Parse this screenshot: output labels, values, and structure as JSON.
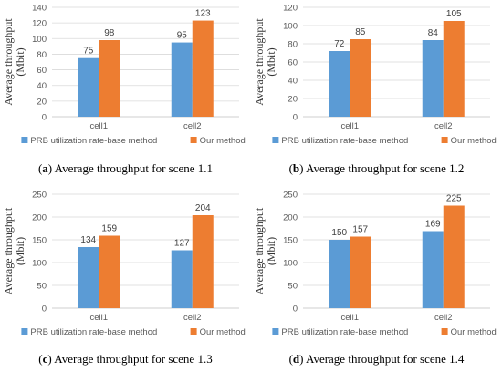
{
  "chart_data": [
    {
      "type": "bar",
      "panel_letter": "a",
      "caption": "Average throughput for scene 1.1",
      "ylabel": [
        "Average throughput",
        "(Mbit)"
      ],
      "categories": [
        "cell1",
        "cell2"
      ],
      "ylim": [
        0,
        140
      ],
      "yticks": [
        0,
        20,
        40,
        60,
        80,
        100,
        120,
        140
      ],
      "grid": true,
      "legend_position": "bottom",
      "series": [
        {
          "name": "PRB utilization rate-base method",
          "color": "#5B9BD5",
          "values": [
            75,
            95
          ]
        },
        {
          "name": "Our method",
          "color": "#ED7D31",
          "values": [
            98,
            123
          ]
        }
      ]
    },
    {
      "type": "bar",
      "panel_letter": "b",
      "caption": "Average throughput for scene 1.2",
      "ylabel": [
        "Average throughput",
        "(Mbit)"
      ],
      "categories": [
        "cell1",
        "cell2"
      ],
      "ylim": [
        0,
        120
      ],
      "yticks": [
        0,
        20,
        40,
        60,
        80,
        100,
        120
      ],
      "grid": true,
      "legend_position": "bottom",
      "series": [
        {
          "name": "PRB utilization rate-base method",
          "color": "#5B9BD5",
          "values": [
            72,
            84
          ]
        },
        {
          "name": "Our method",
          "color": "#ED7D31",
          "values": [
            85,
            105
          ]
        }
      ]
    },
    {
      "type": "bar",
      "panel_letter": "c",
      "caption": "Average throughput for scene 1.3",
      "ylabel": [
        "Average throughput",
        "(Mbit)"
      ],
      "categories": [
        "cell1",
        "cell2"
      ],
      "ylim": [
        0,
        250
      ],
      "yticks": [
        0,
        50,
        100,
        150,
        200,
        250
      ],
      "grid": true,
      "legend_position": "bottom",
      "series": [
        {
          "name": "PRB utilization rate-base method",
          "color": "#5B9BD5",
          "values": [
            134,
            127
          ]
        },
        {
          "name": "Our method",
          "color": "#ED7D31",
          "values": [
            159,
            204
          ]
        }
      ]
    },
    {
      "type": "bar",
      "panel_letter": "d",
      "caption": "Average throughput for scene 1.4",
      "ylabel": [
        "Average throughput",
        "(Mbit)"
      ],
      "categories": [
        "cell1",
        "cell2"
      ],
      "ylim": [
        0,
        250
      ],
      "yticks": [
        0,
        50,
        100,
        150,
        200,
        250
      ],
      "grid": true,
      "legend_position": "bottom",
      "series": [
        {
          "name": "PRB utilization rate-base method",
          "color": "#5B9BD5",
          "values": [
            150,
            169
          ]
        },
        {
          "name": "Our method",
          "color": "#ED7D31",
          "values": [
            157,
            225
          ]
        }
      ]
    }
  ]
}
